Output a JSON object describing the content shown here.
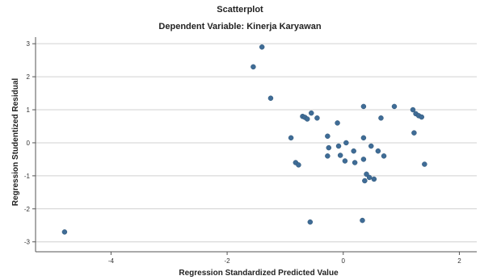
{
  "chart_data": {
    "type": "scatter",
    "title": "Scatterplot",
    "subtitle": "Dependent Variable: Kinerja Karyawan",
    "xlabel": "Regression Standardized Predicted Value",
    "ylabel": "Regression Studentized Residual",
    "xlim": [
      -5.3,
      2.3
    ],
    "ylim": [
      -3.3,
      3.2
    ],
    "xticks": [
      -4,
      -2,
      0,
      2
    ],
    "yticks": [
      3,
      2,
      1,
      0,
      -1,
      -2,
      -3
    ],
    "grid": {
      "horizontal": true,
      "vertical": false
    },
    "point_color": "#3f6c96",
    "points": [
      [
        -4.8,
        -2.7
      ],
      [
        -1.4,
        2.9
      ],
      [
        -1.55,
        2.3
      ],
      [
        -1.25,
        1.35
      ],
      [
        -0.9,
        0.15
      ],
      [
        -0.82,
        -0.6
      ],
      [
        -0.77,
        -0.67
      ],
      [
        -0.7,
        0.8
      ],
      [
        -0.66,
        0.77
      ],
      [
        -0.62,
        0.72
      ],
      [
        -0.55,
        0.9
      ],
      [
        -0.45,
        0.75
      ],
      [
        -0.57,
        -2.4
      ],
      [
        -0.27,
        0.2
      ],
      [
        -0.25,
        -0.15
      ],
      [
        -0.27,
        -0.4
      ],
      [
        -0.1,
        0.6
      ],
      [
        -0.08,
        -0.1
      ],
      [
        -0.05,
        -0.38
      ],
      [
        0.05,
        0.0
      ],
      [
        0.03,
        -0.55
      ],
      [
        0.18,
        -0.25
      ],
      [
        0.2,
        -0.6
      ],
      [
        0.35,
        1.1
      ],
      [
        0.35,
        0.15
      ],
      [
        0.35,
        -0.5
      ],
      [
        0.4,
        -0.95
      ],
      [
        0.45,
        -1.05
      ],
      [
        0.37,
        -1.15
      ],
      [
        0.48,
        -0.1
      ],
      [
        0.53,
        -1.1
      ],
      [
        0.6,
        -0.25
      ],
      [
        0.65,
        0.75
      ],
      [
        0.7,
        -0.4
      ],
      [
        0.88,
        1.1
      ],
      [
        1.2,
        1.0
      ],
      [
        1.25,
        0.88
      ],
      [
        1.3,
        0.82
      ],
      [
        1.35,
        0.78
      ],
      [
        1.22,
        0.3
      ],
      [
        1.4,
        -0.65
      ],
      [
        0.33,
        -2.35
      ]
    ]
  }
}
